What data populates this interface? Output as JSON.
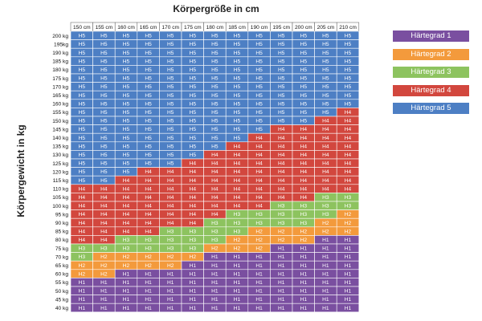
{
  "chart_data": {
    "type": "heatmap",
    "title": "Körpergröße in cm",
    "ylabel": "Körpergewicht in kg",
    "x_categories": [
      "150 cm",
      "155 cm",
      "160 cm",
      "165 cm",
      "170 cm",
      "175 cm",
      "180 cm",
      "185 cm",
      "190 cm",
      "195 cm",
      "200 cm",
      "205 cm",
      "210 cm"
    ],
    "y_categories": [
      "200 kg",
      "195kg",
      "190 kg",
      "185 kg",
      "180 kg",
      "175 kg",
      "170 kg",
      "165 kg",
      "160 kg",
      "155 kg",
      "150 kg",
      "145 kg",
      "140 kg",
      "135 kg",
      "130 kg",
      "125 kg",
      "120 kg",
      "115 kg",
      "110 kg",
      "105 kg",
      "100 kg",
      "95 kg",
      "90 kg",
      "85 kg",
      "80 kg",
      "75 kg",
      "70 kg",
      "65 kg",
      "60 kg",
      "55 kg",
      "50 kg",
      "45 kg",
      "40 kg"
    ],
    "cell_labels": {
      "1": "H1",
      "2": "H2",
      "3": "H3",
      "4": "H4",
      "5": "H5"
    },
    "values": [
      [
        5,
        5,
        5,
        5,
        5,
        5,
        5,
        5,
        5,
        5,
        5,
        5,
        5
      ],
      [
        5,
        5,
        5,
        5,
        5,
        5,
        5,
        5,
        5,
        5,
        5,
        5,
        5
      ],
      [
        5,
        5,
        5,
        5,
        5,
        5,
        5,
        5,
        5,
        5,
        5,
        5,
        5
      ],
      [
        5,
        5,
        5,
        5,
        5,
        5,
        5,
        5,
        5,
        5,
        5,
        5,
        5
      ],
      [
        5,
        5,
        5,
        5,
        5,
        5,
        5,
        5,
        5,
        5,
        5,
        5,
        5
      ],
      [
        5,
        5,
        5,
        5,
        5,
        5,
        5,
        5,
        5,
        5,
        5,
        5,
        5
      ],
      [
        5,
        5,
        5,
        5,
        5,
        5,
        5,
        5,
        5,
        5,
        5,
        5,
        5
      ],
      [
        5,
        5,
        5,
        5,
        5,
        5,
        5,
        5,
        5,
        5,
        5,
        5,
        5
      ],
      [
        5,
        5,
        5,
        5,
        5,
        5,
        5,
        5,
        5,
        5,
        5,
        5,
        5
      ],
      [
        5,
        5,
        5,
        5,
        5,
        5,
        5,
        5,
        5,
        5,
        5,
        5,
        4
      ],
      [
        5,
        5,
        5,
        5,
        5,
        5,
        5,
        5,
        5,
        5,
        5,
        4,
        4
      ],
      [
        5,
        5,
        5,
        5,
        5,
        5,
        5,
        5,
        5,
        4,
        4,
        4,
        4
      ],
      [
        5,
        5,
        5,
        5,
        5,
        5,
        5,
        5,
        4,
        4,
        4,
        4,
        4
      ],
      [
        5,
        5,
        5,
        5,
        5,
        5,
        5,
        4,
        4,
        4,
        4,
        4,
        4
      ],
      [
        5,
        5,
        5,
        5,
        5,
        5,
        4,
        4,
        4,
        4,
        4,
        4,
        4
      ],
      [
        5,
        5,
        5,
        5,
        5,
        4,
        4,
        4,
        4,
        4,
        4,
        4,
        4
      ],
      [
        5,
        5,
        5,
        4,
        4,
        4,
        4,
        4,
        4,
        4,
        4,
        4,
        4
      ],
      [
        5,
        5,
        4,
        4,
        4,
        4,
        4,
        4,
        4,
        4,
        4,
        4,
        4
      ],
      [
        4,
        4,
        4,
        4,
        4,
        4,
        4,
        4,
        4,
        4,
        4,
        4,
        4
      ],
      [
        4,
        4,
        4,
        4,
        4,
        4,
        4,
        4,
        4,
        4,
        4,
        3,
        3
      ],
      [
        4,
        4,
        4,
        4,
        4,
        4,
        4,
        4,
        4,
        3,
        3,
        3,
        3
      ],
      [
        4,
        4,
        4,
        4,
        4,
        4,
        4,
        3,
        3,
        3,
        3,
        3,
        2
      ],
      [
        4,
        4,
        4,
        4,
        4,
        4,
        3,
        3,
        3,
        3,
        3,
        2,
        2
      ],
      [
        4,
        4,
        4,
        4,
        3,
        3,
        3,
        3,
        2,
        2,
        2,
        2,
        2
      ],
      [
        4,
        4,
        3,
        3,
        3,
        3,
        3,
        2,
        2,
        2,
        2,
        1,
        1
      ],
      [
        3,
        3,
        3,
        3,
        3,
        3,
        2,
        2,
        2,
        1,
        1,
        1,
        1
      ],
      [
        3,
        2,
        2,
        2,
        2,
        2,
        1,
        1,
        1,
        1,
        1,
        1,
        1
      ],
      [
        2,
        2,
        2,
        2,
        2,
        1,
        1,
        1,
        1,
        1,
        1,
        1,
        1
      ],
      [
        2,
        2,
        1,
        1,
        1,
        1,
        1,
        1,
        1,
        1,
        1,
        1,
        1
      ],
      [
        1,
        1,
        1,
        1,
        1,
        1,
        1,
        1,
        1,
        1,
        1,
        1,
        1
      ],
      [
        1,
        1,
        1,
        1,
        1,
        1,
        1,
        1,
        1,
        1,
        1,
        1,
        1
      ],
      [
        1,
        1,
        1,
        1,
        1,
        1,
        1,
        1,
        1,
        1,
        1,
        1,
        1
      ],
      [
        1,
        1,
        1,
        1,
        1,
        1,
        1,
        1,
        1,
        1,
        1,
        1,
        1
      ]
    ],
    "colors": {
      "1": "#7a4fa0",
      "2": "#f39a3c",
      "3": "#8dc35f",
      "4": "#d2473e",
      "5": "#4d7fc4"
    },
    "legend": [
      {
        "label": "Härtegrad 1",
        "level": "1"
      },
      {
        "label": "Härtegrad 2",
        "level": "2"
      },
      {
        "label": "Härtegrad 3",
        "level": "3"
      },
      {
        "label": "Härtegrad 4",
        "level": "4"
      },
      {
        "label": "Härtegrad 5",
        "level": "5"
      }
    ],
    "legend_position": "right",
    "grid": true
  }
}
